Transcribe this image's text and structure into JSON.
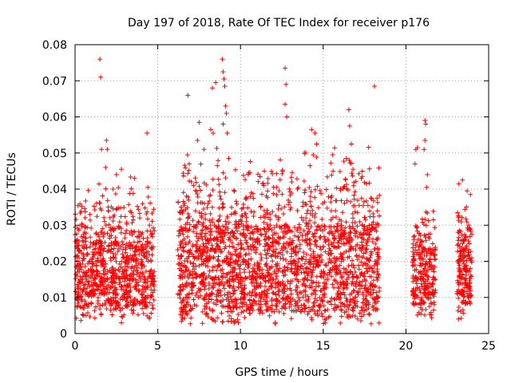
{
  "chart_data": {
    "type": "scatter",
    "title": "Day 197 of 2018, Rate Of TEC Index for receiver p176",
    "xlabel": "GPS time / hours",
    "ylabel": "ROTI / TECUs",
    "xlim": [
      0,
      25
    ],
    "ylim": [
      0,
      0.08
    ],
    "x_ticks": [
      0,
      5,
      10,
      15,
      20,
      25
    ],
    "x_tick_labels": [
      "0",
      "5",
      "10",
      "15",
      "20",
      "25"
    ],
    "y_ticks": [
      0,
      0.01,
      0.02,
      0.03,
      0.04,
      0.05,
      0.06,
      0.07,
      0.08
    ],
    "y_tick_labels": [
      "0",
      "0.01",
      "0.02",
      "0.03",
      "0.04",
      "0.05",
      "0.06",
      "0.07",
      "0.08"
    ],
    "grid": true,
    "marker": "+",
    "color": "#ff0000",
    "series": [
      {
        "name": "ROTI",
        "segments": [
          {
            "x_range": [
              0.0,
              4.8
            ],
            "y_core": [
              0.007,
              0.026
            ],
            "density": 900
          },
          {
            "x_range": [
              6.2,
              18.4
            ],
            "y_core": [
              0.006,
              0.03
            ],
            "density": 2200
          },
          {
            "x_range": [
              20.4,
              21.8
            ],
            "y_core": [
              0.008,
              0.024
            ],
            "density": 260
          },
          {
            "x_range": [
              23.1,
              24.0
            ],
            "y_core": [
              0.008,
              0.024
            ],
            "density": 200
          }
        ],
        "outliers": [
          {
            "x": 1.5,
            "y": 0.076
          },
          {
            "x": 1.55,
            "y": 0.071
          },
          {
            "x": 1.6,
            "y": 0.051
          },
          {
            "x": 1.9,
            "y": 0.0535
          },
          {
            "x": 1.95,
            "y": 0.051
          },
          {
            "x": 1.85,
            "y": 0.046
          },
          {
            "x": 4.35,
            "y": 0.0555
          },
          {
            "x": 4.4,
            "y": 0.0405
          },
          {
            "x": 2.5,
            "y": 0.044
          },
          {
            "x": 2.8,
            "y": 0.0455
          },
          {
            "x": 3.6,
            "y": 0.043
          },
          {
            "x": 2.3,
            "y": 0.04
          },
          {
            "x": 6.8,
            "y": 0.0495
          },
          {
            "x": 6.9,
            "y": 0.047
          },
          {
            "x": 7.4,
            "y": 0.0535
          },
          {
            "x": 7.5,
            "y": 0.0585
          },
          {
            "x": 7.8,
            "y": 0.051
          },
          {
            "x": 8.2,
            "y": 0.0565
          },
          {
            "x": 8.3,
            "y": 0.068
          },
          {
            "x": 8.5,
            "y": 0.0695
          },
          {
            "x": 8.35,
            "y": 0.0555
          },
          {
            "x": 8.9,
            "y": 0.076
          },
          {
            "x": 8.95,
            "y": 0.0725
          },
          {
            "x": 9.0,
            "y": 0.0705
          },
          {
            "x": 9.05,
            "y": 0.0685
          },
          {
            "x": 9.1,
            "y": 0.063
          },
          {
            "x": 9.15,
            "y": 0.061
          },
          {
            "x": 8.95,
            "y": 0.058
          },
          {
            "x": 8.6,
            "y": 0.0465
          },
          {
            "x": 9.2,
            "y": 0.0555
          },
          {
            "x": 12.7,
            "y": 0.0735
          },
          {
            "x": 12.75,
            "y": 0.069
          },
          {
            "x": 12.7,
            "y": 0.0635
          },
          {
            "x": 12.8,
            "y": 0.06
          },
          {
            "x": 14.3,
            "y": 0.0565
          },
          {
            "x": 14.5,
            "y": 0.0555
          },
          {
            "x": 14.6,
            "y": 0.0525
          },
          {
            "x": 14.2,
            "y": 0.0465
          },
          {
            "x": 14.4,
            "y": 0.0495
          },
          {
            "x": 16.55,
            "y": 0.062
          },
          {
            "x": 16.6,
            "y": 0.0575
          },
          {
            "x": 16.7,
            "y": 0.0525
          },
          {
            "x": 16.4,
            "y": 0.0485
          },
          {
            "x": 16.8,
            "y": 0.0455
          },
          {
            "x": 18.1,
            "y": 0.0685
          },
          {
            "x": 17.3,
            "y": 0.043
          },
          {
            "x": 15.6,
            "y": 0.045
          },
          {
            "x": 13.1,
            "y": 0.042
          },
          {
            "x": 10.5,
            "y": 0.0445
          },
          {
            "x": 11.4,
            "y": 0.041
          },
          {
            "x": 12.0,
            "y": 0.0405
          },
          {
            "x": 20.6,
            "y": 0.051
          },
          {
            "x": 20.7,
            "y": 0.0515
          },
          {
            "x": 20.55,
            "y": 0.047
          },
          {
            "x": 21.15,
            "y": 0.059
          },
          {
            "x": 21.2,
            "y": 0.058
          },
          {
            "x": 21.15,
            "y": 0.0535
          },
          {
            "x": 21.3,
            "y": 0.044
          },
          {
            "x": 21.25,
            "y": 0.0405
          },
          {
            "x": 21.1,
            "y": 0.051
          },
          {
            "x": 23.2,
            "y": 0.0415
          },
          {
            "x": 23.7,
            "y": 0.0395
          },
          {
            "x": 23.9,
            "y": 0.0385
          },
          {
            "x": 6.5,
            "y": 0.004
          },
          {
            "x": 8.9,
            "y": 0.0032
          },
          {
            "x": 9.6,
            "y": 0.0035
          },
          {
            "x": 2.8,
            "y": 0.003
          },
          {
            "x": 4.5,
            "y": 0.0045
          },
          {
            "x": 15.1,
            "y": 0.0038
          }
        ]
      }
    ]
  }
}
